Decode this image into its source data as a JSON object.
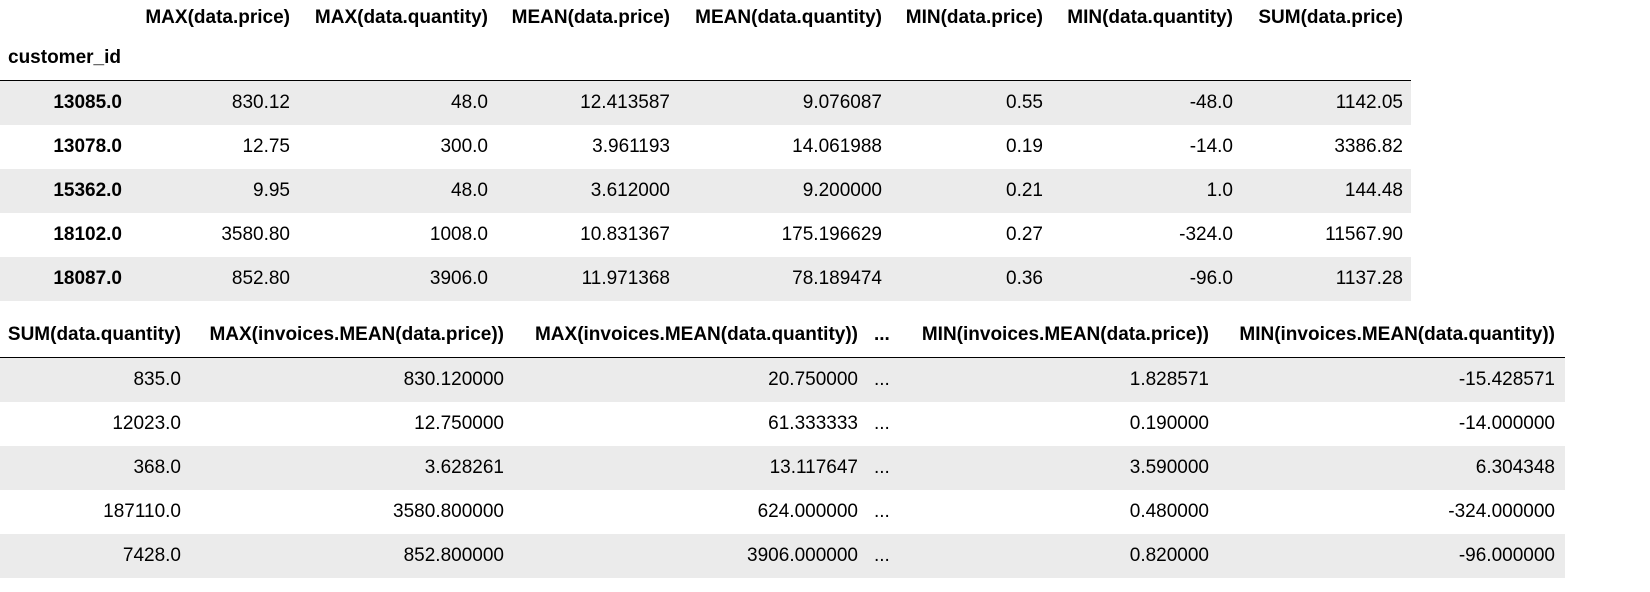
{
  "table1": {
    "index_name": "customer_id",
    "columns": [
      "MAX(data.price)",
      "MAX(data.quantity)",
      "MEAN(data.price)",
      "MEAN(data.quantity)",
      "MIN(data.price)",
      "MIN(data.quantity)",
      "SUM(data.price)"
    ],
    "rows": [
      {
        "index": "13085.0",
        "cells": [
          "830.12",
          "48.0",
          "12.413587",
          "9.076087",
          "0.55",
          "-48.0",
          "1142.05"
        ]
      },
      {
        "index": "13078.0",
        "cells": [
          "12.75",
          "300.0",
          "3.961193",
          "14.061988",
          "0.19",
          "-14.0",
          "3386.82"
        ]
      },
      {
        "index": "15362.0",
        "cells": [
          "9.95",
          "48.0",
          "3.612000",
          "9.200000",
          "0.21",
          "1.0",
          "144.48"
        ]
      },
      {
        "index": "18102.0",
        "cells": [
          "3580.80",
          "1008.0",
          "10.831367",
          "175.196629",
          "0.27",
          "-324.0",
          "11567.90"
        ]
      },
      {
        "index": "18087.0",
        "cells": [
          "852.80",
          "3906.0",
          "11.971368",
          "78.189474",
          "0.36",
          "-96.0",
          "1137.28"
        ]
      }
    ]
  },
  "table2": {
    "columns": [
      "SUM(data.quantity)",
      "MAX(invoices.MEAN(data.price))",
      "MAX(invoices.MEAN(data.quantity))",
      "...",
      "MIN(invoices.MEAN(data.price))",
      "MIN(invoices.MEAN(data.quantity))"
    ],
    "rows": [
      {
        "cells": [
          "835.0",
          "830.120000",
          "20.750000",
          "...",
          "1.828571",
          "-15.428571"
        ]
      },
      {
        "cells": [
          "12023.0",
          "12.750000",
          "61.333333",
          "...",
          "0.190000",
          "-14.000000"
        ]
      },
      {
        "cells": [
          "368.0",
          "3.628261",
          "13.117647",
          "...",
          "3.590000",
          "6.304348"
        ]
      },
      {
        "cells": [
          "187110.0",
          "3580.800000",
          "624.000000",
          "...",
          "0.480000",
          "-324.000000"
        ]
      },
      {
        "cells": [
          "7428.0",
          "852.800000",
          "3906.000000",
          "...",
          "0.820000",
          "-96.000000"
        ]
      }
    ]
  }
}
